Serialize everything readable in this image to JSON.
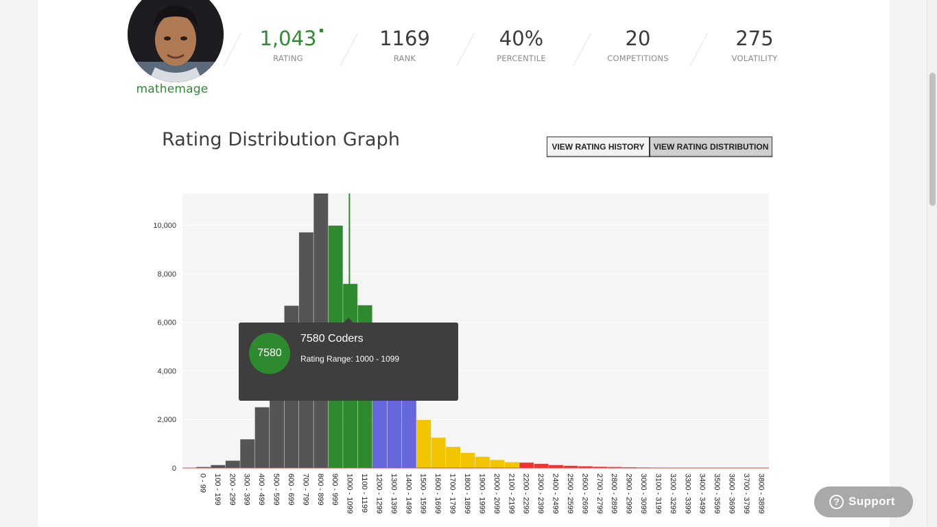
{
  "profile": {
    "handle": "mathemage",
    "avatar_icon": "profile-photo"
  },
  "stats": [
    {
      "value": "1,043",
      "label": "RATING"
    },
    {
      "value": "1169",
      "label": "RANK"
    },
    {
      "value": "40%",
      "label": "PERCENTILE"
    },
    {
      "value": "20",
      "label": "COMPETITIONS"
    },
    {
      "value": "275",
      "label": "VOLATILITY"
    }
  ],
  "graph": {
    "title": "Rating Distribution Graph",
    "btn_history": "VIEW RATING HISTORY",
    "btn_distribution": "VIEW RATING DISTRIBUTION"
  },
  "tooltip": {
    "count": "7580",
    "title": "7580 Coders",
    "range": "Rating Range: 1000 - 1099"
  },
  "support": {
    "label": "Support",
    "icon": "question-icon"
  },
  "chart_data": {
    "type": "bar",
    "categories": [
      "0 - 99",
      "100 - 199",
      "200 - 299",
      "300 - 399",
      "400 - 499",
      "500 - 599",
      "600 - 699",
      "700 - 799",
      "800 - 899",
      "900 - 999",
      "1000 - 1099",
      "1100 - 1199",
      "1200 - 1299",
      "1300 - 1399",
      "1400 - 1499",
      "1500 - 1599",
      "1600 - 1699",
      "1700 - 1799",
      "1800 - 1899",
      "1900 - 1999",
      "2000 - 2099",
      "2100 - 2199",
      "2200 - 2299",
      "2300 - 2399",
      "2400 - 2499",
      "2500 - 2599",
      "2600 - 2699",
      "2700 - 2799",
      "2800 - 2899",
      "2900 - 2999",
      "3000 - 3099",
      "3100 - 3199",
      "3200 - 3299",
      "3300 - 3399",
      "3400 - 3499",
      "3500 - 3599",
      "3600 - 3699",
      "3700 - 3799",
      "3800 - 3899"
    ],
    "values": [
      40,
      120,
      300,
      1180,
      2500,
      3600,
      6680,
      9700,
      11300,
      9980,
      7580,
      6700,
      5980,
      4200,
      2800,
      1980,
      1250,
      870,
      620,
      460,
      330,
      240,
      220,
      170,
      120,
      90,
      70,
      50,
      40,
      30,
      20,
      15,
      12,
      10,
      8,
      6,
      5,
      4,
      3
    ],
    "colors": [
      "#555555",
      "#555555",
      "#555555",
      "#555555",
      "#555555",
      "#555555",
      "#555555",
      "#555555",
      "#555555",
      "#2e8a2e",
      "#2e8a2e",
      "#2e8a2e",
      "#6666dd",
      "#6666dd",
      "#6666dd",
      "#f2c500",
      "#f2c500",
      "#f2c500",
      "#f2c500",
      "#f2c500",
      "#f2c500",
      "#f2c500",
      "#ee3333",
      "#ee3333",
      "#ee3333",
      "#ee3333",
      "#ee3333",
      "#ee3333",
      "#ee3333",
      "#ee3333",
      "#ee3333",
      "#ee3333",
      "#ee3333",
      "#ee3333",
      "#ee3333",
      "#ee3333",
      "#ee3333",
      "#ee3333",
      "#ee3333"
    ],
    "yticks": [
      0,
      2000,
      4000,
      6000,
      8000,
      10000
    ],
    "ytick_labels": [
      "0",
      "2,000",
      "4,000",
      "6,000",
      "8,000",
      "10,000"
    ],
    "ylim": [
      0,
      11300
    ],
    "user_rating": 1043,
    "highlight_category": "1000 - 1099",
    "grid": true,
    "title": "",
    "xlabel": "",
    "ylabel": ""
  }
}
